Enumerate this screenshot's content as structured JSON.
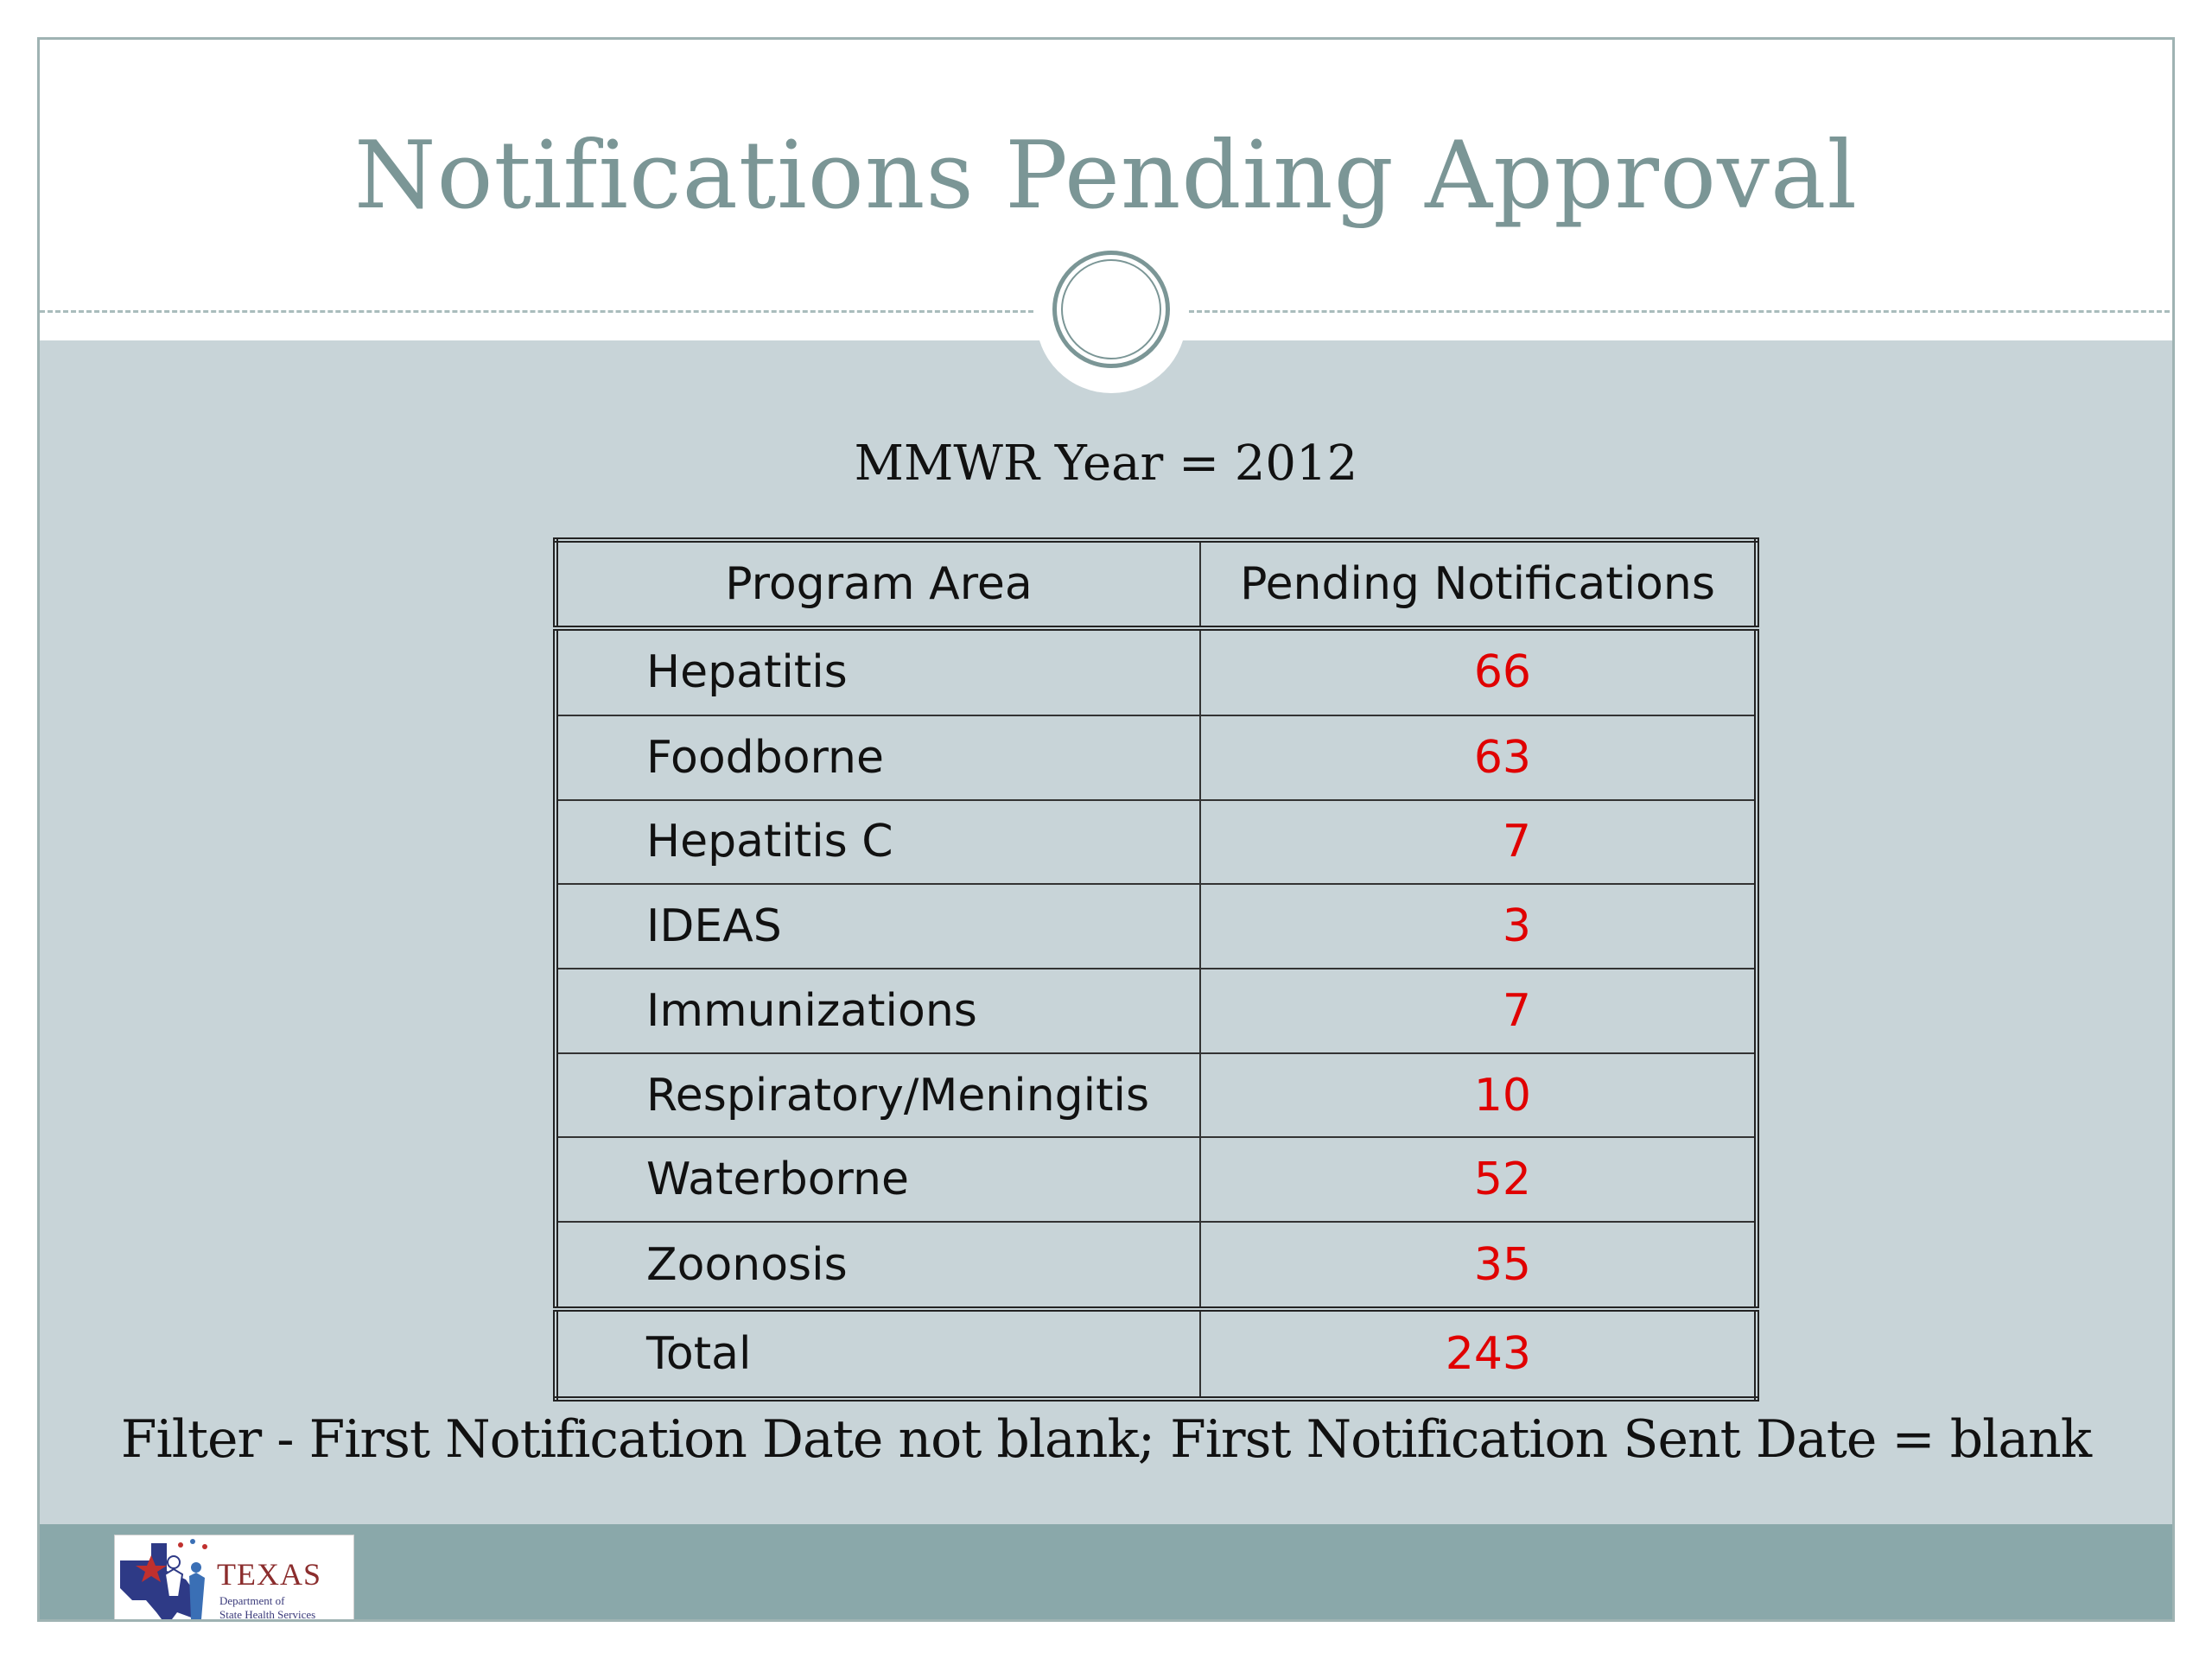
{
  "slide": {
    "title": "Notifications Pending Approval",
    "subtitle": "MMWR Year = 2012",
    "filter_note": "Filter - First Notification Date not blank; First Notification Sent Date = blank"
  },
  "table": {
    "headers": [
      "Program Area",
      "Pending Notifications"
    ],
    "rows": [
      {
        "program": "Hepatitis",
        "pending": "66"
      },
      {
        "program": "Foodborne",
        "pending": "63"
      },
      {
        "program": "Hepatitis C",
        "pending": "7"
      },
      {
        "program": "IDEAS",
        "pending": "3"
      },
      {
        "program": "Immunizations",
        "pending": "7"
      },
      {
        "program": "Respiratory/Meningitis",
        "pending": "10"
      },
      {
        "program": "Waterborne",
        "pending": "52"
      },
      {
        "program": "Zoonosis",
        "pending": "35"
      }
    ],
    "total": {
      "program": "Total",
      "pending": "243"
    }
  },
  "logo": {
    "name": "TEXAS",
    "line1": "Department of",
    "line2": "State Health Services"
  },
  "colors": {
    "title": "#7b9696",
    "value": "#e00000",
    "content_bg": "#c8d4d8",
    "footer_bg": "#8aa8aa"
  }
}
